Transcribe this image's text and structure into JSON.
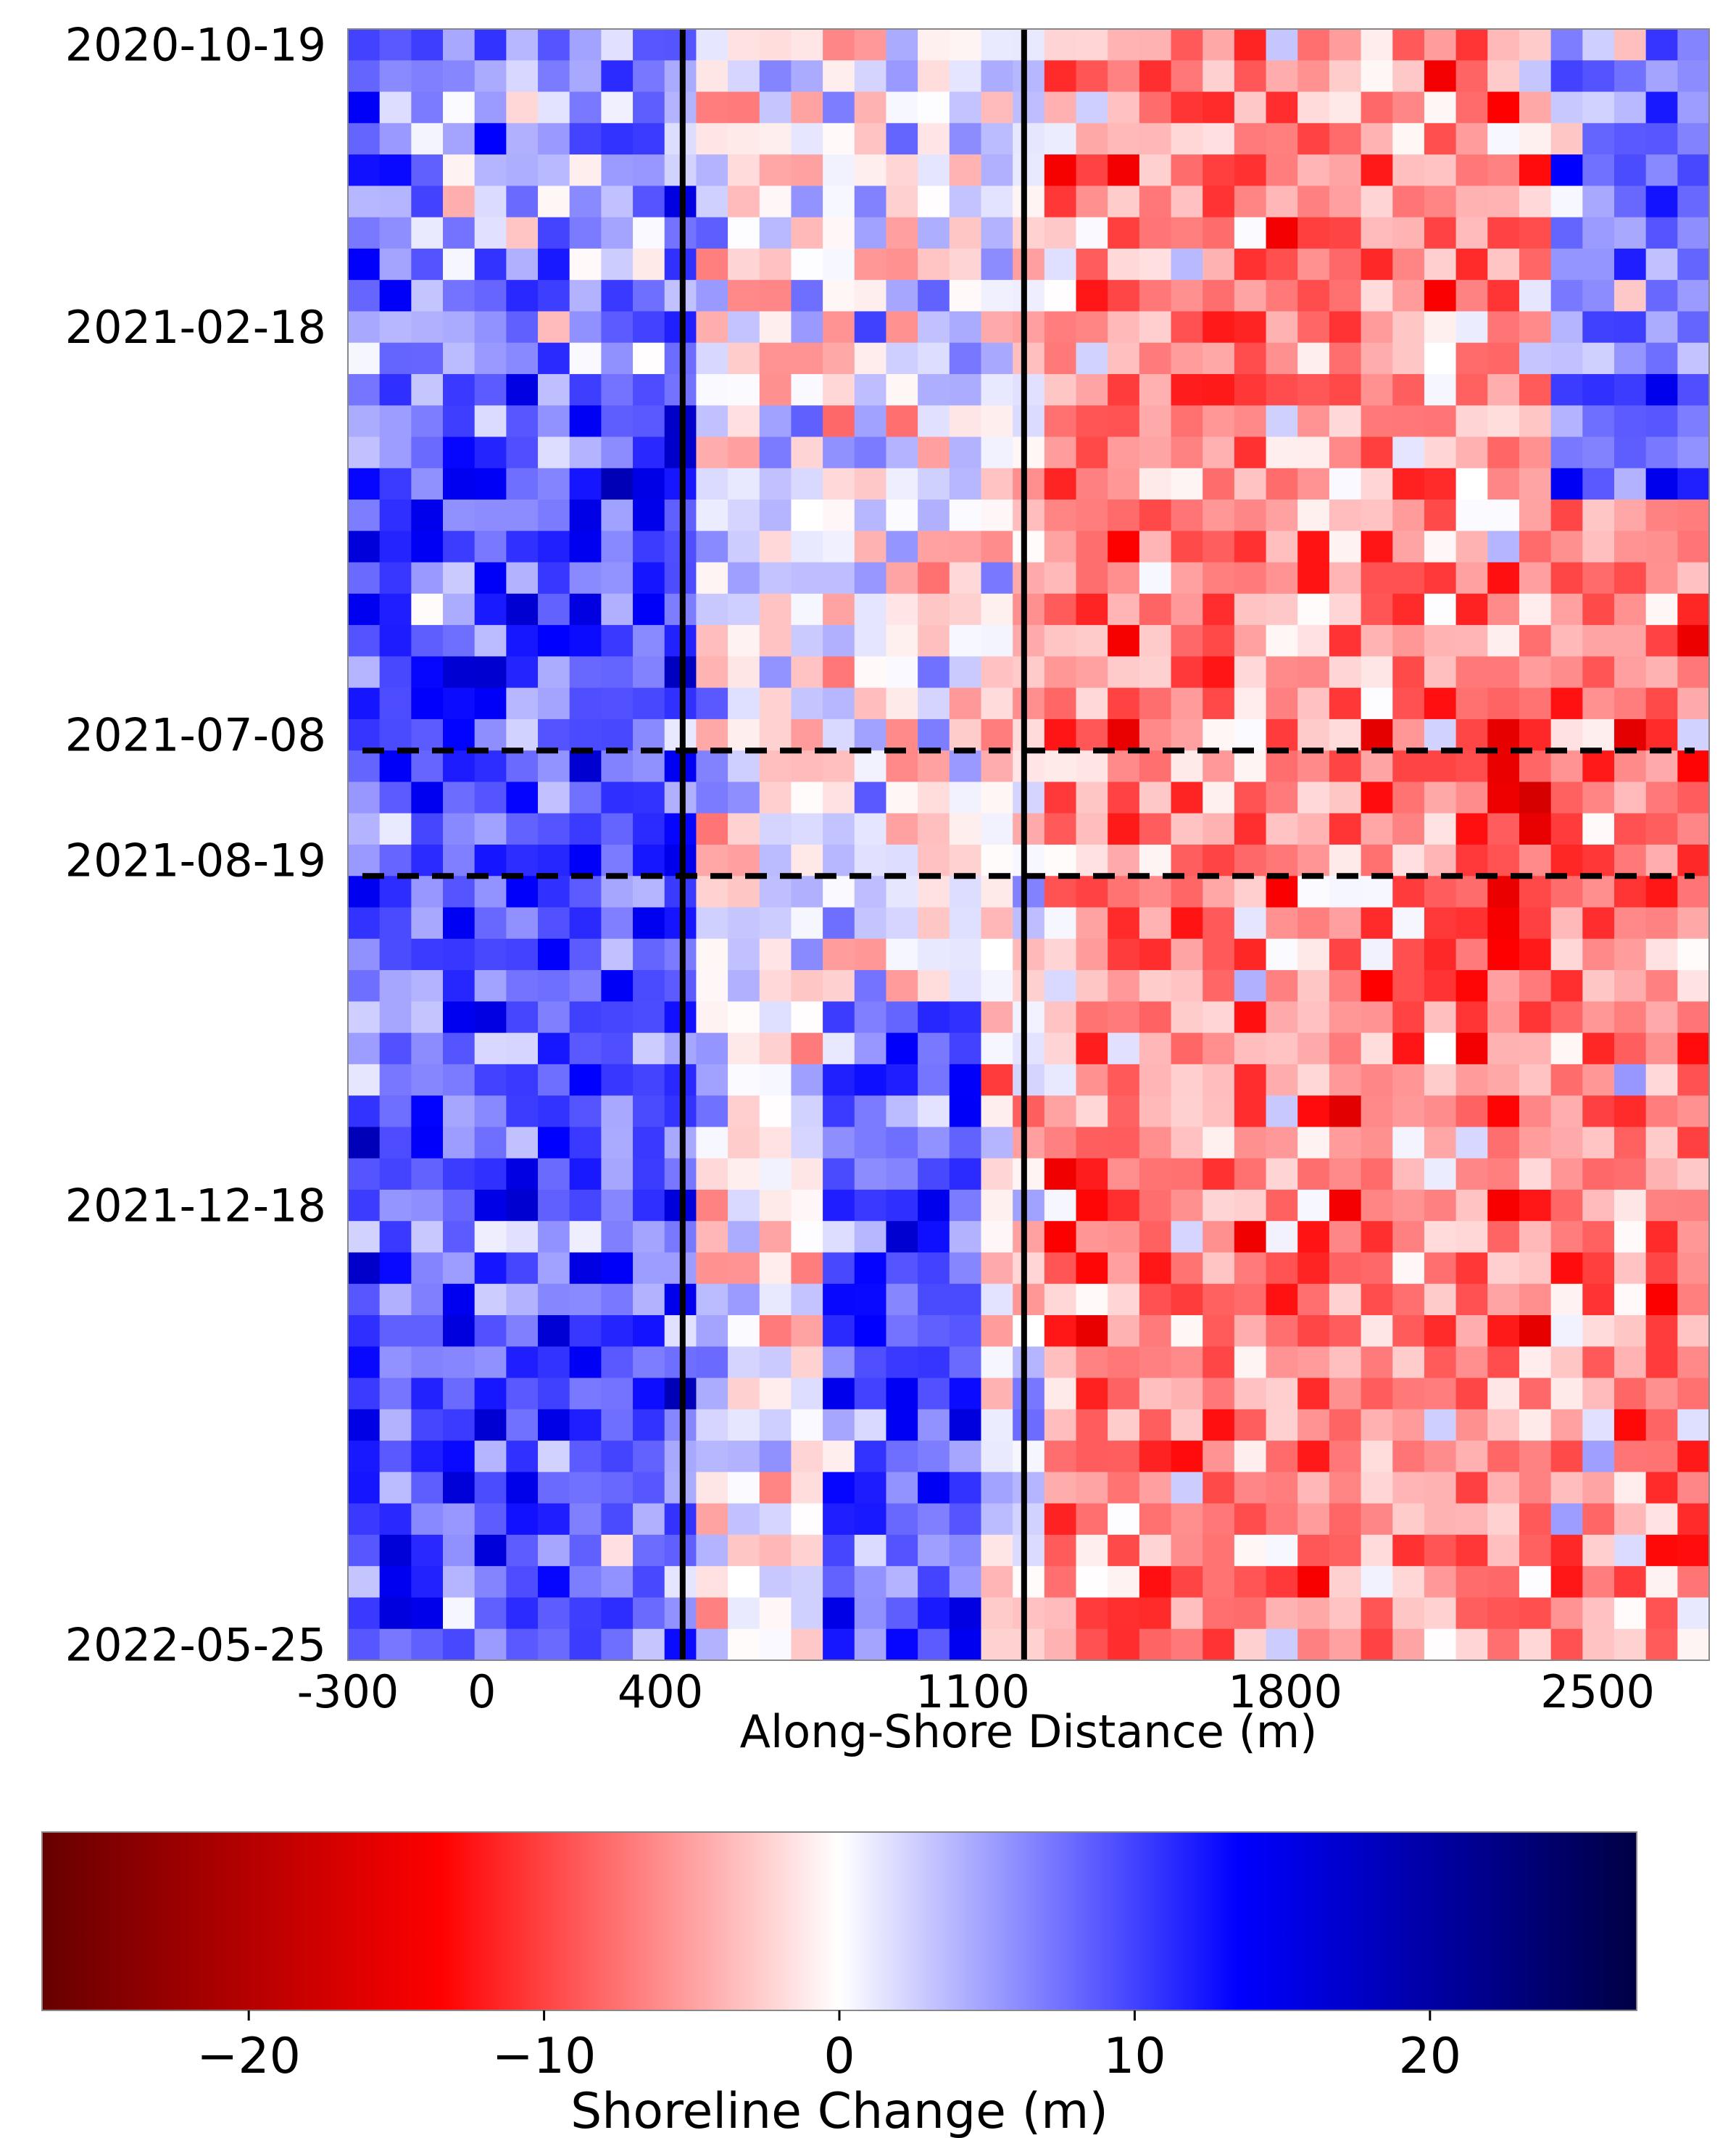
{
  "chart_data": [
    {
      "type": "heatmap",
      "title": "",
      "xlabel": "Along-Shore Distance (m)",
      "ylabel": "",
      "x_ticks": [
        -300,
        0,
        400,
        1100,
        1800,
        2500
      ],
      "x_tick_labels": [
        "-300",
        "0",
        "400",
        "1100",
        "1800",
        "2500"
      ],
      "xlim": [
        -300,
        2750
      ],
      "y_tick_labels": [
        "2020-10-19",
        "2021-02-18",
        "2021-07-08",
        "2021-08-19",
        "2021-12-18",
        "2022-05-25"
      ],
      "y_ticks_row_index": [
        0,
        9,
        22,
        26,
        37,
        51
      ],
      "n_rows": 52,
      "n_cols": 43,
      "x_start": -300,
      "x_step": 70,
      "vertical_lines_x": [
        450,
        1215
      ],
      "dashed_lines_after_date": [
        "2021-07-08",
        "2021-08-19"
      ],
      "colormap": "seismic_r",
      "vmin": -27,
      "vmax": 27,
      "values_description": "shoreline change per transect and date, negative = red (erosion), positive = blue (accretion)",
      "values": []
    },
    {
      "type": "colorbar",
      "label": "Shoreline Change (m)",
      "range": [
        -27,
        27
      ],
      "ticks": [
        -20,
        -10,
        0,
        10,
        20
      ],
      "tick_labels": [
        "−20",
        "−10",
        "0",
        "10",
        "20"
      ],
      "colors": [
        "#660000",
        "#ff0000",
        "#ffffff",
        "#0000ff",
        "#000044"
      ]
    }
  ]
}
